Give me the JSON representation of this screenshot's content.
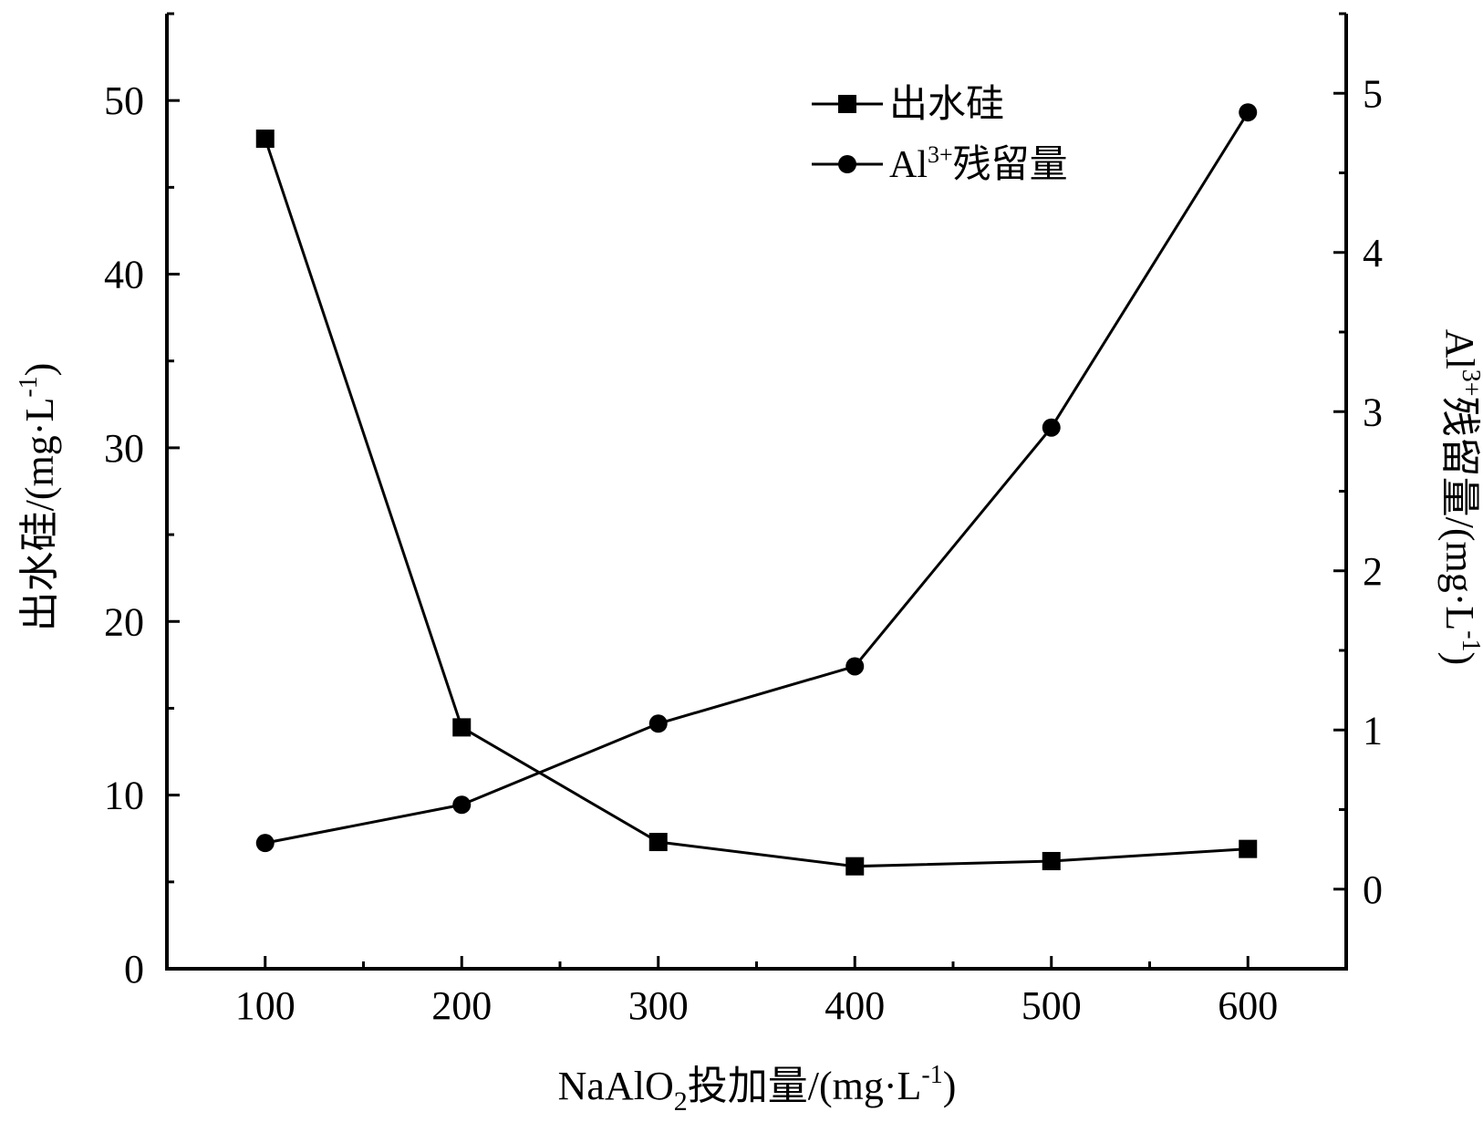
{
  "chart_data": {
    "type": "line",
    "x": [
      100,
      200,
      300,
      400,
      500,
      600
    ],
    "xlim": [
      50,
      650
    ],
    "x_ticks": [
      "100",
      "200",
      "300",
      "400",
      "500",
      "600"
    ],
    "x_tick_values": [
      100,
      200,
      300,
      400,
      500,
      600
    ],
    "xlabel": {
      "prefix": "NaAlO",
      "sub": "2",
      "rest": "投加量/(mg·L",
      "sup": "-1",
      "close": ")"
    },
    "y_left": {
      "lim": [
        0,
        55
      ],
      "ticks": [
        "0",
        "10",
        "20",
        "30",
        "40",
        "50"
      ],
      "tick_values": [
        0,
        10,
        20,
        30,
        40,
        50
      ],
      "label": {
        "main": "出水硅/(mg·L",
        "sup": "-1",
        "close": ")"
      }
    },
    "y_right": {
      "lim": [
        -0.5,
        5.5
      ],
      "ticks": [
        "0",
        "1",
        "2",
        "3",
        "4",
        "5"
      ],
      "tick_values": [
        0,
        1,
        2,
        3,
        4,
        5
      ],
      "label": {
        "prefix": "Al",
        "sup": "3+",
        "rest": "残留量/(mg·L",
        "sup2": "-1",
        "close": ")"
      }
    },
    "series": [
      {
        "name": "出水硅",
        "axis": "left",
        "marker": "square",
        "values": [
          47.8,
          13.9,
          7.3,
          5.9,
          6.2,
          6.9
        ]
      },
      {
        "name_prefix": "Al",
        "name_sup": "3+",
        "name_rest": "残留量",
        "axis": "right",
        "marker": "circle",
        "values": [
          0.29,
          0.53,
          1.04,
          1.4,
          2.9,
          4.88
        ]
      }
    ],
    "legend_position": "top-right",
    "grid": false,
    "colors": {
      "line": "#000000",
      "marker": "#000000"
    }
  }
}
